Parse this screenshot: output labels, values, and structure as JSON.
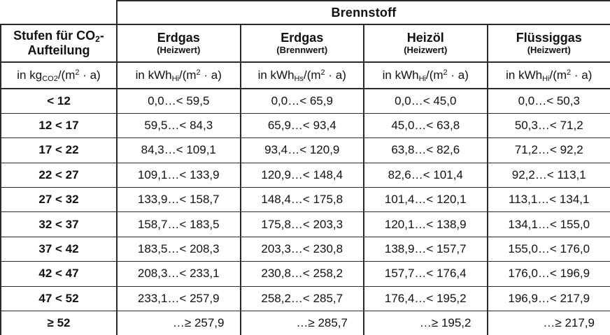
{
  "colors": {
    "border": "#2a2a2a",
    "text": "#111111",
    "background": "#ffffff"
  },
  "table": {
    "group_header": "Brennstoff",
    "stub": {
      "line1_pre": "Stufen für CO",
      "line1_sub": "2",
      "line1_tail": "-",
      "line2": "Aufteilung"
    },
    "stub_unit": {
      "pre": "in kg",
      "sub": "CO2",
      "mid": "/(m",
      "sup": "2",
      "tail": " · a)"
    },
    "columns": [
      {
        "name": "Erdgas",
        "basis": "(Heizwert)",
        "unit": {
          "pre": "in kWh",
          "sub": "Hi",
          "mid": "/(m",
          "sup": "2",
          "tail": " · a)"
        }
      },
      {
        "name": "Erdgas",
        "basis": "(Brennwert)",
        "unit": {
          "pre": "in kWh",
          "sub": "Hs",
          "mid": "/(m",
          "sup": "2",
          "tail": " · a)"
        }
      },
      {
        "name": "Heizöl",
        "basis": "(Heizwert)",
        "unit": {
          "pre": "in kWh",
          "sub": "Hi",
          "mid": "/(m",
          "sup": "2",
          "tail": " · a)"
        }
      },
      {
        "name": "Flüssiggas",
        "basis": "(Heizwert)",
        "unit": {
          "pre": "in kWh",
          "sub": "Hi",
          "mid": "/(m",
          "sup": "2",
          "tail": " · a)"
        }
      }
    ],
    "rows": [
      {
        "label": "< 12",
        "values": [
          "0,0…< 59,5",
          "0,0…< 65,9",
          "0,0…< 45,0",
          "0,0…< 50,3"
        ]
      },
      {
        "label": "12 < 17",
        "values": [
          "59,5…< 84,3",
          "65,9…< 93,4",
          "45,0…< 63,8",
          "50,3…< 71,2"
        ]
      },
      {
        "label": "17 < 22",
        "values": [
          "84,3…< 109,1",
          "93,4…< 120,9",
          "63,8…< 82,6",
          "71,2…< 92,2"
        ]
      },
      {
        "label": "22 < 27",
        "values": [
          "109,1…< 133,9",
          "120,9…< 148,4",
          "82,6…< 101,4",
          "92,2…< 113,1"
        ]
      },
      {
        "label": "27 < 32",
        "values": [
          "133,9…< 158,7",
          "148,4…< 175,8",
          "101,4…< 120,1",
          "113,1…< 134,1"
        ]
      },
      {
        "label": "32 < 37",
        "values": [
          "158,7…< 183,5",
          "175,8…< 203,3",
          "120,1…< 138,9",
          "134,1…< 155,0"
        ]
      },
      {
        "label": "37 < 42",
        "values": [
          "183,5…< 208,3",
          "203,3…< 230,8",
          "138,9…< 157,7",
          "155,0…< 176,0"
        ]
      },
      {
        "label": "42 < 47",
        "values": [
          "208,3…< 233,1",
          "230,8…< 258,2",
          "157,7…< 176,4",
          "176,0…< 196,9"
        ]
      },
      {
        "label": "47 < 52",
        "values": [
          "233,1…< 257,9",
          "258,2…< 285,7",
          "176,4…< 195,2",
          "196,9…< 217,9"
        ]
      },
      {
        "label": "≥ 52",
        "values": [
          "…≥ 257,9",
          "…≥ 285,7",
          "…≥ 195,2",
          "…≥ 217,9"
        ]
      }
    ]
  }
}
